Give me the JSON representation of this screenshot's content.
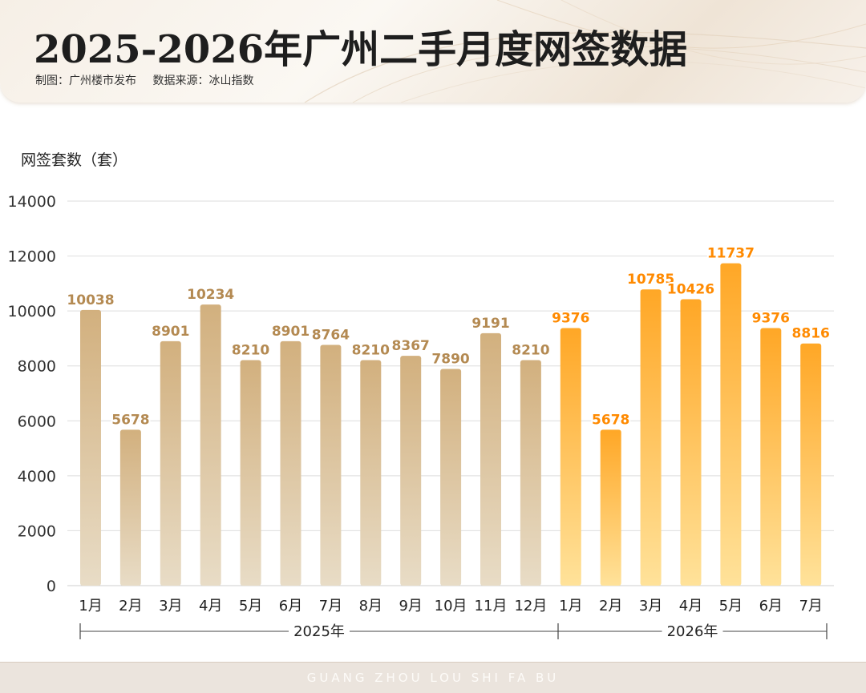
{
  "header": {
    "title": "2025-2026年广州二手月度网签数据",
    "maker": "制图：广州楼市发布",
    "source": "数据来源：冰山指数"
  },
  "footer": {
    "text": "GUANG ZHOU LOU SHI FA BU"
  },
  "colors": {
    "bar_2025_top": "#d2b07e",
    "bar_2025_bottom": "#e8dcc6",
    "bar_2026_top": "#ffa726",
    "bar_2026_bottom": "#ffe29a",
    "label_2025": "#b48a52",
    "label_2026": "#ff8a00"
  },
  "chart_data": {
    "type": "bar",
    "ylabel": "网签套数（套）",
    "ylim": [
      0,
      14000
    ],
    "yticks": [
      0,
      2000,
      4000,
      6000,
      8000,
      10000,
      12000,
      14000
    ],
    "grid": true,
    "groups": [
      {
        "label": "2025年",
        "categories": [
          "1月",
          "2月",
          "3月",
          "4月",
          "5月",
          "6月",
          "7月",
          "8月",
          "9月",
          "10月",
          "11月",
          "12月"
        ],
        "values": [
          10038,
          5678,
          8901,
          10234,
          8210,
          8901,
          8764,
          8210,
          8367,
          7890,
          9191,
          8210
        ]
      },
      {
        "label": "2026年",
        "categories": [
          "1月",
          "2月",
          "3月",
          "4月",
          "5月",
          "6月",
          "7月"
        ],
        "values": [
          9376,
          5678,
          10785,
          10426,
          11737,
          9376,
          8816
        ]
      }
    ]
  }
}
